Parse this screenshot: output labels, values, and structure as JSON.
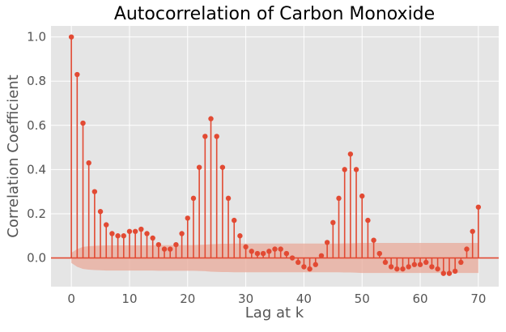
{
  "chart_data": {
    "type": "stem",
    "title": "Autocorrelation of Carbon Monoxide",
    "xlabel": "Lag at k",
    "ylabel": "Correlation Coefficient",
    "xlim": [
      -3.5,
      73.5
    ],
    "ylim": [
      -0.13,
      1.05
    ],
    "x_ticks": [
      0,
      10,
      20,
      30,
      40,
      50,
      60,
      70
    ],
    "y_ticks": [
      0.0,
      0.2,
      0.4,
      0.6,
      0.8,
      1.0
    ],
    "grid": true,
    "colors": {
      "stem": "#e24a33",
      "band": "#e8aa9a",
      "background": "#e5e5e5",
      "grid": "#ffffff",
      "text": "#555555"
    },
    "lags": [
      0,
      1,
      2,
      3,
      4,
      5,
      6,
      7,
      8,
      9,
      10,
      11,
      12,
      13,
      14,
      15,
      16,
      17,
      18,
      19,
      20,
      21,
      22,
      23,
      24,
      25,
      26,
      27,
      28,
      29,
      30,
      31,
      32,
      33,
      34,
      35,
      36,
      37,
      38,
      39,
      40,
      41,
      42,
      43,
      44,
      45,
      46,
      47,
      48,
      49,
      50,
      51,
      52,
      53,
      54,
      55,
      56,
      57,
      58,
      59,
      60,
      61,
      62,
      63,
      64,
      65,
      66,
      67,
      68,
      69,
      70
    ],
    "values": [
      1.0,
      0.83,
      0.61,
      0.43,
      0.3,
      0.21,
      0.15,
      0.11,
      0.1,
      0.1,
      0.12,
      0.12,
      0.13,
      0.11,
      0.09,
      0.06,
      0.04,
      0.04,
      0.06,
      0.11,
      0.18,
      0.27,
      0.41,
      0.55,
      0.63,
      0.55,
      0.41,
      0.27,
      0.17,
      0.1,
      0.05,
      0.03,
      0.02,
      0.02,
      0.03,
      0.04,
      0.04,
      0.02,
      0.0,
      -0.02,
      -0.04,
      -0.05,
      -0.03,
      0.01,
      0.07,
      0.16,
      0.27,
      0.4,
      0.47,
      0.4,
      0.28,
      0.17,
      0.08,
      0.02,
      -0.02,
      -0.04,
      -0.05,
      -0.05,
      -0.04,
      -0.03,
      -0.03,
      -0.02,
      -0.04,
      -0.05,
      -0.07,
      -0.07,
      -0.06,
      -0.02,
      0.04,
      0.12,
      0.23
    ],
    "confidence_band": [
      0.023,
      0.04,
      0.05,
      0.053,
      0.055,
      0.056,
      0.057,
      0.057,
      0.057,
      0.057,
      0.057,
      0.057,
      0.057,
      0.057,
      0.057,
      0.058,
      0.058,
      0.058,
      0.058,
      0.058,
      0.058,
      0.058,
      0.059,
      0.06,
      0.062,
      0.063,
      0.064,
      0.064,
      0.065,
      0.065,
      0.065,
      0.065,
      0.065,
      0.065,
      0.065,
      0.065,
      0.065,
      0.065,
      0.065,
      0.065,
      0.065,
      0.065,
      0.065,
      0.065,
      0.065,
      0.065,
      0.065,
      0.066,
      0.066,
      0.067,
      0.068,
      0.068,
      0.068,
      0.068,
      0.068,
      0.068,
      0.068,
      0.068,
      0.068,
      0.068,
      0.068,
      0.068,
      0.068,
      0.068,
      0.068,
      0.068,
      0.068,
      0.068,
      0.068,
      0.068,
      0.068
    ]
  }
}
